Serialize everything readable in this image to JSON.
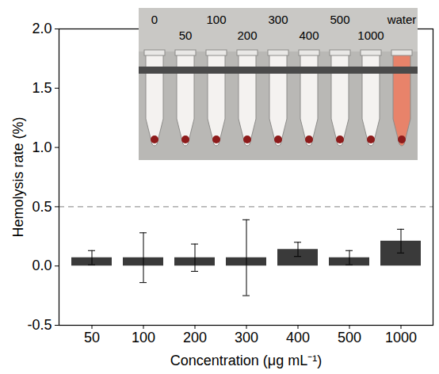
{
  "chart_data": {
    "type": "bar",
    "x_label": "Concentration (μg mL⁻¹)",
    "y_label": "Hemolysis rate (%)",
    "categories": [
      50,
      100,
      200,
      300,
      400,
      500,
      1000
    ],
    "values": [
      0.07,
      0.07,
      0.07,
      0.07,
      0.14,
      0.07,
      0.21
    ],
    "errors": [
      0.06,
      0.21,
      0.115,
      0.32,
      0.06,
      0.06,
      0.1
    ],
    "color": "#3a3a3a",
    "ylim": [
      -0.5,
      2.0
    ],
    "yticks": [
      -0.5,
      {
        "value": 0,
        "label": "0.0"
      },
      0.5,
      {
        "value": 1,
        "label": "1.0"
      },
      1.5,
      {
        "value": 2,
        "label": "2.0"
      }
    ],
    "threshold": 0.5,
    "grid": false,
    "inset": {
      "labels": [
        "0",
        "50",
        "100",
        "200",
        "300",
        "400",
        "500",
        "1000",
        "water"
      ],
      "colors": [
        "#f4f2f0",
        "#f4f2f0",
        "#f4f2f0",
        "#f4f2f0",
        "#f4f2f0",
        "#f4f2f0",
        "#f4f2f0",
        "#f4f2f0",
        "#e8836a"
      ]
    }
  }
}
